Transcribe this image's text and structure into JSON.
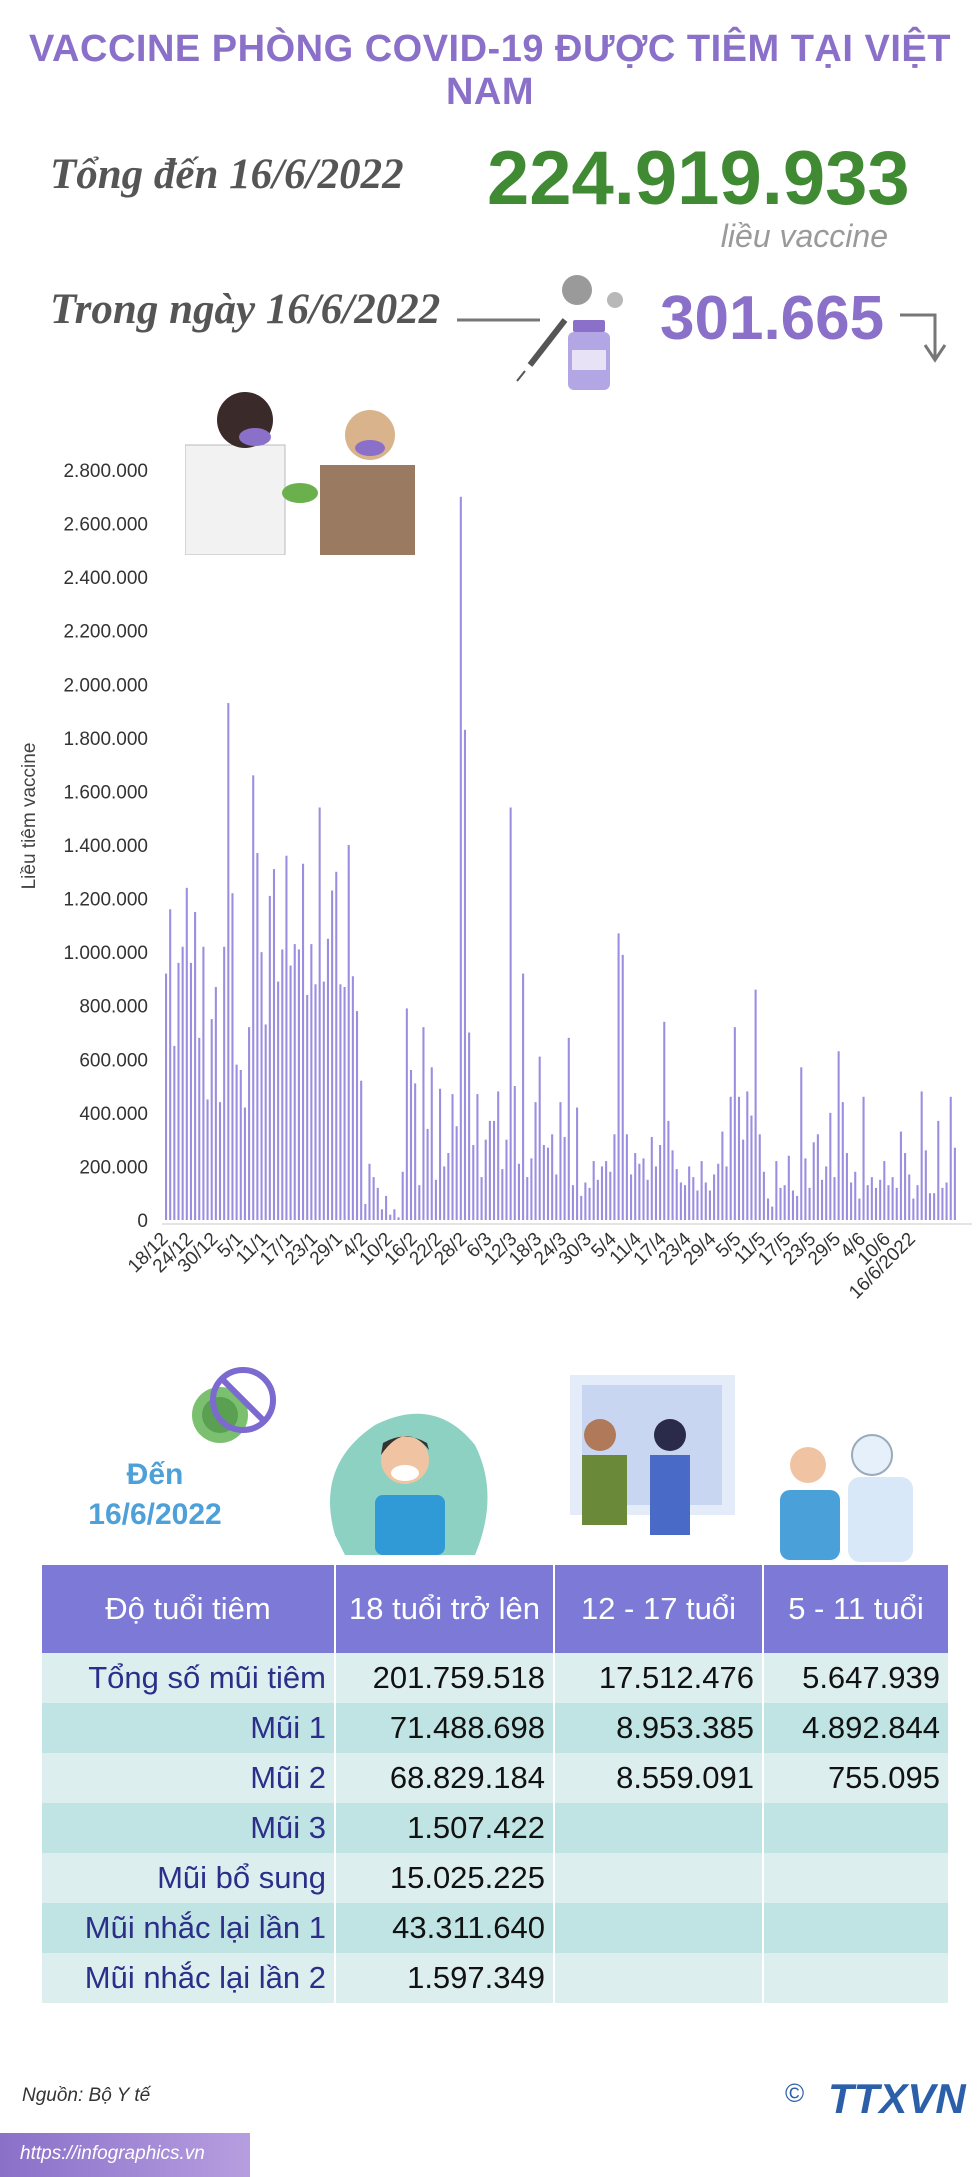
{
  "header": {
    "title": "VACCINE PHÒNG COVID-19 ĐƯỢC TIÊM TẠI VIỆT NAM",
    "total_label": "Tổng đến 16/6/2022",
    "total_value": "224.919.933",
    "total_unit": "liều vaccine",
    "day_label": "Trong ngày 16/6/2022",
    "day_value": "301.665"
  },
  "chart_data": {
    "type": "bar",
    "ylabel": "Liều tiêm vaccine",
    "ylim": [
      0,
      2800000
    ],
    "yticks": [
      "0",
      "200.000",
      "400.000",
      "600.000",
      "800.000",
      "1.000.000",
      "1.200.000",
      "1.400.000",
      "1.600.000",
      "1.800.000",
      "2.000.000",
      "2.200.000",
      "2.400.000",
      "2.600.000",
      "2.800.000"
    ],
    "xtick_labels": [
      "18/12",
      "24/12",
      "30/12",
      "5/1",
      "11/1",
      "17/1",
      "23/1",
      "29/1",
      "4/2",
      "10/2",
      "16/2",
      "22/2",
      "28/2",
      "6/3",
      "12/3",
      "18/3",
      "24/3",
      "30/3",
      "5/4",
      "11/4",
      "17/4",
      "23/4",
      "29/4",
      "5/5",
      "11/5",
      "17/5",
      "23/5",
      "29/5",
      "4/6",
      "10/6",
      "16/6/2022"
    ],
    "color": "#9b8ee0",
    "values": [
      920000,
      1160000,
      650000,
      960000,
      1020000,
      1240000,
      960000,
      1150000,
      680000,
      1020000,
      450000,
      750000,
      870000,
      440000,
      1020000,
      1930000,
      1220000,
      580000,
      560000,
      420000,
      720000,
      1660000,
      1370000,
      1000000,
      730000,
      1210000,
      1310000,
      890000,
      1010000,
      1360000,
      950000,
      1030000,
      1010000,
      1330000,
      840000,
      1030000,
      880000,
      1540000,
      890000,
      1050000,
      1230000,
      1300000,
      880000,
      870000,
      1400000,
      910000,
      780000,
      520000,
      60000,
      210000,
      160000,
      120000,
      40000,
      90000,
      20000,
      40000,
      10000,
      180000,
      790000,
      560000,
      510000,
      130000,
      720000,
      340000,
      570000,
      150000,
      490000,
      200000,
      250000,
      470000,
      350000,
      2700000,
      1830000,
      700000,
      280000,
      470000,
      160000,
      300000,
      370000,
      370000,
      480000,
      190000,
      300000,
      1540000,
      500000,
      210000,
      920000,
      160000,
      230000,
      440000,
      610000,
      280000,
      270000,
      320000,
      170000,
      440000,
      310000,
      680000,
      130000,
      420000,
      90000,
      140000,
      120000,
      220000,
      150000,
      200000,
      220000,
      180000,
      320000,
      1070000,
      990000,
      320000,
      170000,
      250000,
      210000,
      230000,
      150000,
      310000,
      200000,
      280000,
      740000,
      370000,
      260000,
      190000,
      140000,
      130000,
      200000,
      160000,
      110000,
      220000,
      140000,
      110000,
      170000,
      210000,
      330000,
      200000,
      460000,
      720000,
      460000,
      300000,
      480000,
      390000,
      860000,
      320000,
      180000,
      80000,
      50000,
      220000,
      120000,
      130000,
      240000,
      110000,
      90000,
      570000,
      230000,
      120000,
      290000,
      320000,
      150000,
      200000,
      400000,
      160000,
      630000,
      440000,
      250000,
      140000,
      180000,
      80000,
      460000,
      130000,
      160000,
      120000,
      150000,
      220000,
      130000,
      160000,
      120000,
      330000,
      250000,
      170000,
      80000,
      130000,
      480000,
      260000,
      100000,
      100000,
      370000,
      120000,
      140000,
      460000,
      270000
    ]
  },
  "age_section": {
    "den_label": "Đến 16/6/2022",
    "columns": [
      "Độ tuổi tiêm",
      "18 tuổi trở lên",
      "12 - 17 tuổi",
      "5 - 11 tuổi"
    ],
    "rows": [
      {
        "label": "Tổng số mũi tiêm",
        "c1": "201.759.518",
        "c2": "17.512.476",
        "c3": "5.647.939"
      },
      {
        "label": "Mũi 1",
        "c1": "71.488.698",
        "c2": "8.953.385",
        "c3": "4.892.844"
      },
      {
        "label": "Mũi 2",
        "c1": "68.829.184",
        "c2": "8.559.091",
        "c3": "755.095"
      },
      {
        "label": "Mũi 3",
        "c1": "1.507.422",
        "c2": "",
        "c3": ""
      },
      {
        "label": "Mũi bổ sung",
        "c1": "15.025.225",
        "c2": "",
        "c3": ""
      },
      {
        "label": "Mũi nhắc lại lần 1",
        "c1": "43.311.640",
        "c2": "",
        "c3": ""
      },
      {
        "label": "Mũi nhắc lại lần 2",
        "c1": "1.597.349",
        "c2": "",
        "c3": ""
      }
    ]
  },
  "footer": {
    "source": "Nguồn: Bộ Y tế",
    "url": "https://infographics.vn",
    "logo_text": "TTXVN",
    "copyright": "©"
  }
}
